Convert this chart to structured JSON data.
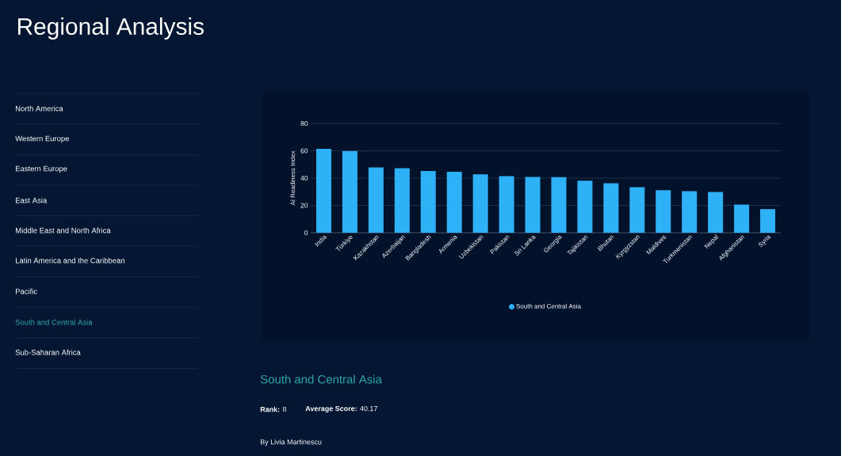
{
  "chart_data": {
    "type": "bar",
    "title": "Regional Analysis",
    "ylabel": "AI Readiness Index",
    "categories": [
      "India",
      "Türkiye",
      "Kazakhstan",
      "Azerbaijan",
      "Bangladesh",
      "Armenia",
      "Uzbekistan",
      "Pakistan",
      "Sri Lanka",
      "Georgia",
      "Tajikistan",
      "Bhutan",
      "Kyrgyzstan",
      "Maldives",
      "Turkmenistan",
      "Nepal",
      "Afghanistan",
      "Syria"
    ],
    "series": [
      {
        "name": "South and Central Asia",
        "color": "#2fb1f8",
        "values": [
          61.5,
          59.9,
          47.8,
          47.3,
          45.2,
          44.7,
          42.8,
          41.4,
          40.9,
          40.7,
          38.1,
          36.2,
          33.4,
          31.2,
          30.5,
          29.8,
          20.6,
          17.3
        ]
      }
    ],
    "ylim": [
      0,
      80
    ],
    "yticks": [
      0,
      20,
      40,
      60,
      80
    ],
    "grid": "y",
    "legend": "bottom",
    "annotations": [
      "North America",
      "Western Europe",
      "Eastern Europe",
      "East Asia",
      "Middle East and North Africa",
      "Latin America and the Caribbean",
      "Pacific",
      "South and Central Asia",
      "Sub-Saharan Africa",
      "South and Central Asia",
      "**Rank:** 8",
      "**Average Score:** 40.17",
      "By Livia Martinescu"
    ]
  }
}
